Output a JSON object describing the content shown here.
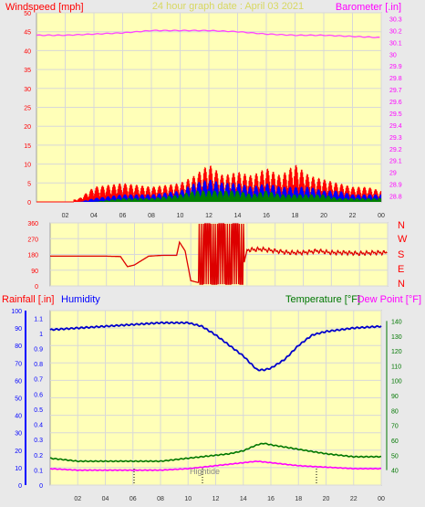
{
  "header": {
    "windspeed_label": "Windspeed [mph]",
    "title": "24 hour graph date : April 03 2021",
    "barometer_label": "Barometer [.in]"
  },
  "compass": [
    "N",
    "W",
    "S",
    "E",
    "N"
  ],
  "lower_header": {
    "rainfall_label": "Rainfall [.in]",
    "humidity_label": "Humidity",
    "temperature_label": "Temperature [°F]",
    "dewpoint_label": "Dew Point [°F]"
  },
  "annotations": {
    "hightide": "Hightide"
  },
  "colors": {
    "panel_bg": "#ffffb8",
    "grid": "#d8d8d8",
    "windspeed_axis": "#ff0000",
    "barometer_axis": "#ff00ff",
    "gust": "#ff0000",
    "average_wind": "#0000ff",
    "low_wind": "#008000",
    "barometer": "#ff44ff",
    "wind_direction": "#dd0000",
    "humidity": "#0000cc",
    "temperature": "#007700",
    "dew_point": "#ff00ff",
    "rainfall_axis": "#0000ff"
  },
  "chart_data": [
    {
      "type": "line",
      "chart": "wind-and-barometer",
      "x_ticks": [
        "02",
        "04",
        "06",
        "08",
        "10",
        "12",
        "14",
        "16",
        "18",
        "20",
        "22",
        "00"
      ],
      "x_range_hours": [
        0,
        24
      ],
      "y_left": {
        "label": "Windspeed [mph]",
        "ylim": [
          0,
          50
        ],
        "ticks": [
          0,
          5,
          10,
          15,
          20,
          25,
          30,
          35,
          40,
          45,
          50
        ]
      },
      "y_right": {
        "label": "Barometer [.in]",
        "ylim": [
          28.75,
          30.35
        ],
        "ticks": [
          28.8,
          28.9,
          29,
          29.1,
          29.2,
          29.3,
          29.4,
          29.5,
          29.6,
          29.7,
          29.8,
          29.9,
          30,
          30.1,
          30.2,
          30.3
        ]
      },
      "grid": true,
      "barometer": {
        "x": [
          0,
          2,
          4,
          6,
          8,
          10,
          12,
          14,
          16,
          18,
          20,
          22,
          24
        ],
        "values": [
          30.16,
          30.16,
          30.17,
          30.18,
          30.2,
          30.2,
          30.2,
          30.19,
          30.17,
          30.16,
          30.16,
          30.15,
          30.14
        ]
      },
      "windspeed_envelope": {
        "x": [
          0,
          2,
          3,
          4,
          6,
          8,
          10,
          11,
          12,
          13,
          14,
          15,
          16,
          17,
          18,
          19,
          20,
          21,
          22,
          23,
          24
        ],
        "gust_max": [
          0,
          0,
          1,
          4,
          5,
          4,
          5,
          7,
          10,
          7,
          8,
          7,
          9,
          7,
          10,
          7,
          6,
          5,
          4,
          4,
          3
        ],
        "average_max": [
          0,
          0,
          0,
          1,
          2,
          2,
          3,
          5,
          6,
          5,
          5,
          4,
          5,
          4,
          4,
          4,
          3,
          3,
          2,
          2,
          2
        ],
        "low_max": [
          0,
          0,
          0,
          0,
          1,
          1,
          2,
          3,
          3,
          3,
          3,
          2,
          3,
          2,
          2,
          2,
          2,
          1,
          1,
          1,
          1
        ]
      }
    },
    {
      "type": "line",
      "chart": "wind-direction",
      "x_range_hours": [
        0,
        24
      ],
      "y_left": {
        "ylim": [
          0,
          360
        ],
        "ticks": [
          0,
          90,
          180,
          270,
          360
        ]
      },
      "y_right_labels": [
        "N",
        "W",
        "S",
        "E",
        "N"
      ],
      "series": [
        {
          "x": [
            0,
            1,
            2,
            3,
            4,
            5,
            5.5,
            6,
            7,
            8,
            9,
            9.2,
            9.6,
            10,
            10.5,
            11,
            11.5,
            12,
            12.5,
            13,
            13.5,
            14,
            15,
            16,
            17,
            18,
            19,
            20,
            21,
            22,
            23,
            24
          ],
          "values": [
            170,
            170,
            170,
            170,
            170,
            168,
            110,
            120,
            170,
            175,
            175,
            250,
            200,
            30,
            20,
            25,
            20,
            30,
            20,
            20,
            30,
            205,
            210,
            200,
            190,
            190,
            200,
            190,
            190,
            185,
            190,
            190
          ]
        }
      ]
    },
    {
      "type": "line",
      "chart": "humidity-temperature-rain",
      "x_ticks": [
        "02",
        "04",
        "06",
        "08",
        "10",
        "12",
        "14",
        "16",
        "18",
        "20",
        "22",
        "00"
      ],
      "x_range_hours": [
        0,
        24
      ],
      "y_left_outer": {
        "label": "Rainfall [.in]",
        "ylim": [
          0,
          100
        ],
        "ticks": [
          0,
          10,
          20,
          30,
          40,
          50,
          60,
          70,
          80,
          90,
          100
        ]
      },
      "y_left_inner": {
        "ylim": [
          0,
          1.15
        ],
        "ticks": [
          0,
          0.1,
          0.2,
          0.3,
          0.4,
          0.5,
          0.6,
          0.7,
          0.8,
          0.9,
          1,
          1.1
        ]
      },
      "y_right": {
        "label": "Temperature [°F]",
        "ylim": [
          30,
          147
        ],
        "ticks": [
          40,
          50,
          60,
          70,
          80,
          90,
          100,
          110,
          120,
          130,
          140
        ]
      },
      "series": [
        {
          "name": "Humidity",
          "x": [
            0,
            2,
            4,
            6,
            8,
            10,
            11,
            12,
            13,
            14,
            14.5,
            15,
            15.5,
            16,
            17,
            18,
            19,
            20,
            22,
            24
          ],
          "values": [
            89,
            90,
            91,
            92,
            93,
            93,
            91,
            86,
            80,
            74,
            70,
            66,
            66,
            67,
            72,
            80,
            86,
            88,
            90,
            91
          ]
        },
        {
          "name": "Temperature",
          "x": [
            0,
            2,
            4,
            6,
            8,
            10,
            12,
            13,
            14,
            15,
            15.5,
            16,
            18,
            20,
            22,
            24
          ],
          "values": [
            48,
            46,
            46,
            46,
            46,
            48,
            50,
            51,
            53,
            57,
            58,
            57,
            54,
            51,
            49,
            49
          ]
        },
        {
          "name": "Dew Point",
          "x": [
            0,
            2,
            4,
            6,
            8,
            10,
            12,
            14,
            15,
            16,
            18,
            20,
            22,
            24
          ],
          "values": [
            41,
            40,
            40,
            40,
            40,
            41,
            43,
            45,
            46,
            45,
            43,
            42,
            41,
            41
          ]
        }
      ]
    }
  ]
}
